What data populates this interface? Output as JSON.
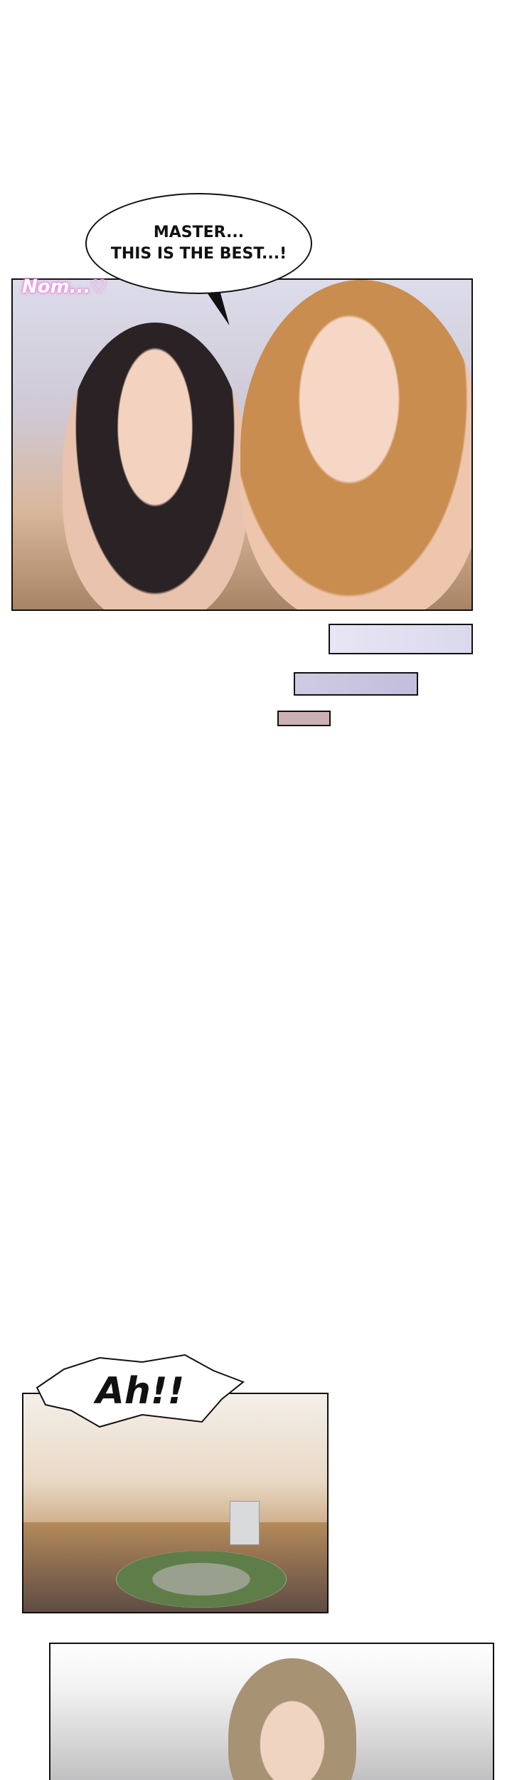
{
  "panel1": {
    "speech": {
      "line1": "MASTER...",
      "line2": "THIS IS THE BEST...!"
    },
    "sfx": "Nom...♡",
    "sfx_color": "#f08ee0"
  },
  "transition_bars": {
    "colors": [
      "#e8e6f4",
      "#c2bedb",
      "#cdb0b4"
    ]
  },
  "panel2": {
    "speech": "Ah!!"
  }
}
